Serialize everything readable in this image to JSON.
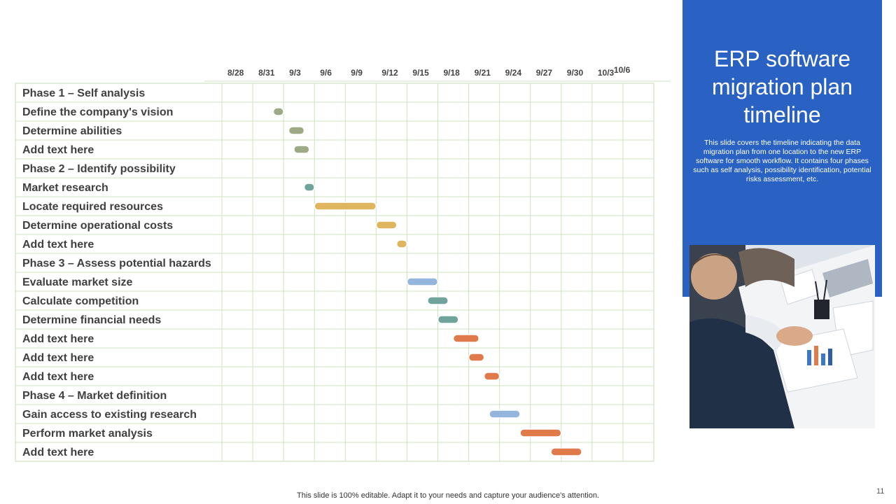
{
  "side_panel": {
    "title": "ERP software migration plan timeline",
    "description": "This slide covers the timeline indicating the data migration plan from one location to the new ERP software for smooth workflow. It contains four phases such as self analysis, possibility identification, potential risks assessment, etc."
  },
  "footer": "This slide is 100% editable. Adapt it to your needs and capture your audience's attention.",
  "slide_number": "11",
  "chart_data": {
    "type": "gantt",
    "tick_labels": [
      "8/28",
      "8/31",
      "9/3",
      "9/6",
      "9/9",
      "9/12",
      "9/15",
      "9/18",
      "9/21",
      "9/24",
      "9/27",
      "9/30",
      "10/3",
      "10/6"
    ],
    "tasks": [
      {
        "label": "Phase 1 – Self analysis",
        "is_phase": true
      },
      {
        "label": "Define the company's vision",
        "start": "9/2",
        "end": "9/3",
        "color": "#9eaa86"
      },
      {
        "label": "Determine abilities",
        "start": "9/3.5",
        "end": "9/5",
        "color": "#9eaa86"
      },
      {
        "label": "Add text here",
        "start": "9/4",
        "end": "9/5.5",
        "color": "#9eaa86"
      },
      {
        "label": "Phase 2 – Identify possibility",
        "is_phase": true
      },
      {
        "label": "Market research",
        "start": "9/5",
        "end": "9/6",
        "color": "#6fa39b"
      },
      {
        "label": "Locate required resources",
        "start": "9/6",
        "end": "9/12",
        "color": "#dfb55e"
      },
      {
        "label": "Determine operational costs",
        "start": "9/12",
        "end": "9/14",
        "color": "#dfb55e"
      },
      {
        "label": "Add text here",
        "start": "9/14",
        "end": "9/15",
        "color": "#dfb55e"
      },
      {
        "label": "Phase 3 – Assess potential hazards",
        "is_phase": true
      },
      {
        "label": "Evaluate market size",
        "start": "9/15",
        "end": "9/18",
        "color": "#94b6dc"
      },
      {
        "label": "Calculate competition",
        "start": "9/17",
        "end": "9/19",
        "color": "#6fa39b"
      },
      {
        "label": "Determine financial needs",
        "start": "9/18",
        "end": "9/20",
        "color": "#6fa39b"
      },
      {
        "label": "Add text here",
        "start": "9/19.5",
        "end": "9/22",
        "color": "#e07a4a"
      },
      {
        "label": "Add text here",
        "start": "9/21",
        "end": "9/22.5",
        "color": "#e07a4a"
      },
      {
        "label": "Add text here",
        "start": "9/22.5",
        "end": "9/24",
        "color": "#e07a4a"
      },
      {
        "label": "Phase 4 – Market definition",
        "is_phase": true
      },
      {
        "label": "Gain access to existing research",
        "start": "9/23",
        "end": "9/26",
        "color": "#94b6dc"
      },
      {
        "label": "Perform market analysis",
        "start": "9/26",
        "end": "9/30",
        "color": "#e07a4a"
      },
      {
        "label": "Add text here",
        "start": "9/29",
        "end": "10/2",
        "color": "#e07a4a"
      }
    ],
    "grid_color": "#cfe3c0"
  }
}
